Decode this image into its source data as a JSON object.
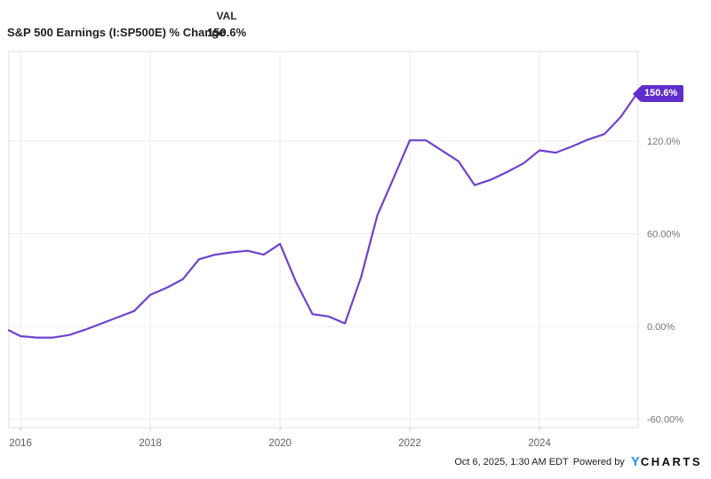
{
  "header": {
    "title": "S&P 500 Earnings (I:SP500E) % Change",
    "val_label": "VAL",
    "val_value": "150.6%"
  },
  "tag": {
    "label": "150.6%",
    "bg_color": "#5e2dcb"
  },
  "footer": {
    "timestamp": "Oct 6, 2025, 1:30 AM EDT",
    "powered_by": "Powered by",
    "logo_y": "Y",
    "logo_rest": "CHARTS"
  },
  "colors": {
    "line": "#6e42cf",
    "tag_bg": "#5e2dcb",
    "grid": "#ececec",
    "border": "#dfdfdf",
    "tick": "#c9c9c9",
    "x_label": "#616161",
    "y_label": "#757575",
    "logo_blue": "#1e96f0"
  },
  "chart_data": {
    "type": "line",
    "title": "S&P 500 Earnings (I:SP500E) % Change",
    "xlabel": "",
    "ylabel": "",
    "grid": true,
    "legend_position": "none",
    "x_range": [
      2015.82,
      2025.52
    ],
    "y_range": [
      -65.4,
      178.0
    ],
    "x_ticks": [
      {
        "value": 2016,
        "label": "2016"
      },
      {
        "value": 2018,
        "label": "2018"
      },
      {
        "value": 2020,
        "label": "2020"
      },
      {
        "value": 2022,
        "label": "2022"
      },
      {
        "value": 2024,
        "label": "2024"
      }
    ],
    "y_ticks": [
      {
        "value": 120,
        "label": "120.0%"
      },
      {
        "value": 60,
        "label": "60.00%"
      },
      {
        "value": 0,
        "label": "0.00%"
      },
      {
        "value": -60,
        "label": "-60.00%"
      }
    ],
    "last_value": 150.6,
    "last_value_label": "150.6%",
    "series": [
      {
        "name": "S&P 500 Earnings (I:SP500E) % Change",
        "color": "#6e42cf",
        "x": [
          2015.82,
          2016.0,
          2016.25,
          2016.5,
          2016.75,
          2017.0,
          2017.25,
          2017.5,
          2017.75,
          2018.0,
          2018.25,
          2018.5,
          2018.75,
          2019.0,
          2019.25,
          2019.5,
          2019.75,
          2020.0,
          2020.25,
          2020.5,
          2020.75,
          2021.0,
          2021.25,
          2021.5,
          2021.75,
          2022.0,
          2022.25,
          2022.75,
          2023.0,
          2023.25,
          2023.5,
          2023.75,
          2024.0,
          2024.25,
          2024.5,
          2024.75,
          2025.0,
          2025.25,
          2025.5
        ],
        "values": [
          -2.5,
          -6.3,
          -7.2,
          -7.2,
          -5.5,
          -2.0,
          2.0,
          6.0,
          10.0,
          20.5,
          25.0,
          30.5,
          43.5,
          46.5,
          48.0,
          49.0,
          46.5,
          53.5,
          28.5,
          8.0,
          6.5,
          2.0,
          32.0,
          72.0,
          96.0,
          120.5,
          120.5,
          107.0,
          91.5,
          95.0,
          100.0,
          105.5,
          114.0,
          112.5,
          116.5,
          121.0,
          124.5,
          135.5,
          150.6
        ]
      }
    ]
  }
}
